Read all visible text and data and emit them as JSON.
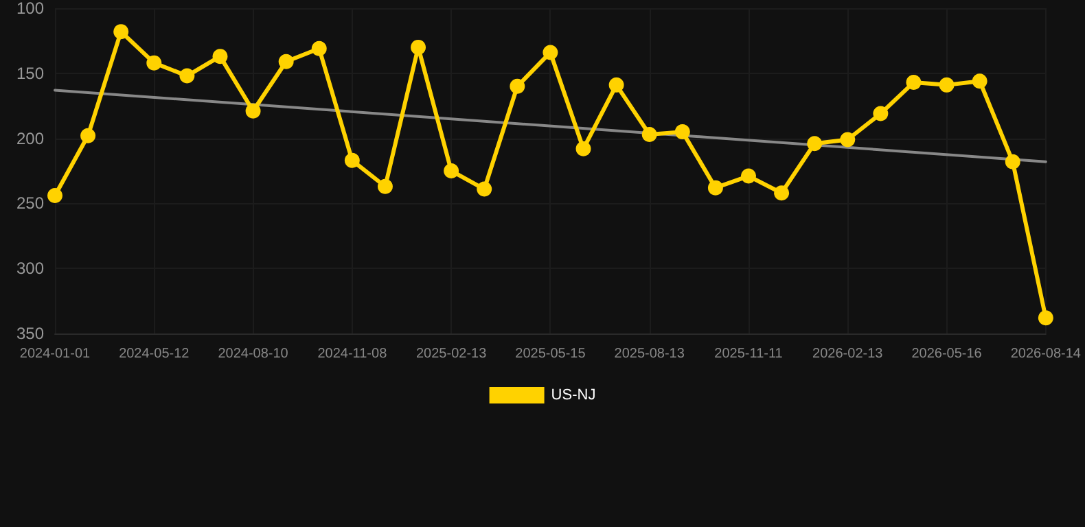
{
  "chart_data": {
    "type": "line",
    "categories": [
      "2024-01-01",
      null,
      null,
      "2024-05-12",
      null,
      null,
      "2024-08-10",
      null,
      null,
      "2024-11-08",
      null,
      null,
      "2025-02-13",
      null,
      null,
      "2025-05-15",
      null,
      null,
      "2025-08-13",
      null,
      null,
      "2025-11-11",
      null,
      null,
      "2026-02-13",
      null,
      null,
      "2026-05-16",
      null,
      null,
      "2026-08-14"
    ],
    "series": [
      {
        "name": "US-NJ",
        "color": "#ffd200",
        "values": [
          244,
          198,
          118,
          142,
          152,
          137,
          179,
          141,
          131,
          217,
          237,
          130,
          225,
          239,
          160,
          134,
          208,
          159,
          197,
          195,
          238,
          229,
          242,
          204,
          201,
          181,
          157,
          159,
          156,
          218,
          338
        ]
      },
      {
        "type": "line",
        "color": "#888888",
        "values": [
          163,
          null,
          null,
          null,
          null,
          null,
          null,
          null,
          null,
          null,
          null,
          null,
          null,
          null,
          null,
          null,
          null,
          null,
          null,
          null,
          null,
          null,
          null,
          null,
          null,
          null,
          null,
          null,
          null,
          null,
          218
        ],
        "marker": "none"
      }
    ],
    "ylim": [
      350,
      100
    ],
    "yticks": [
      100,
      150,
      200,
      250,
      300,
      350
    ],
    "grid": true,
    "legend": "bottom",
    "marker": "circle",
    "line_style": "solid"
  }
}
